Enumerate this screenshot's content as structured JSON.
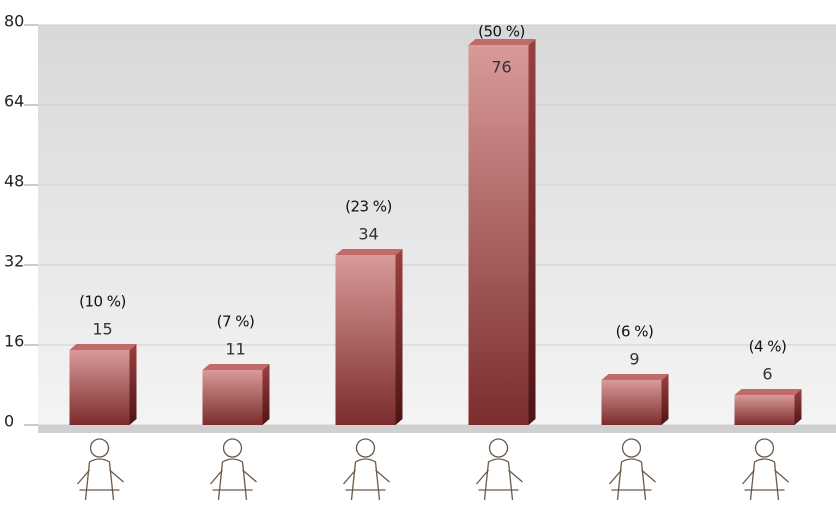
{
  "chart_data": {
    "type": "bar",
    "categories": [
      null,
      null,
      null,
      null,
      null,
      null
    ],
    "values": [
      15,
      11,
      34,
      76,
      9,
      6
    ],
    "share_labels": [
      "(10 %)",
      "(7 %)",
      "(23 %)",
      "(50 %)",
      "(6 %)",
      "(4 %)"
    ],
    "color": "#a84848",
    "ylim": [
      0,
      80
    ],
    "yticks": [
      0,
      16,
      32,
      48,
      64,
      80
    ],
    "grid": true
  }
}
